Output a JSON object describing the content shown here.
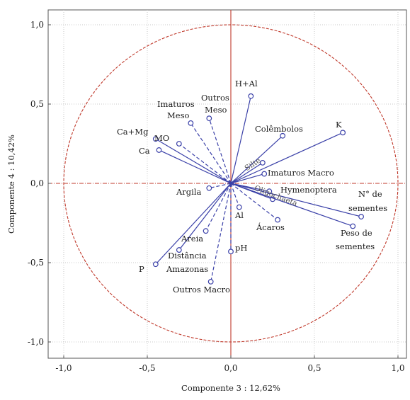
{
  "chart_data": {
    "type": "scatter",
    "subtype": "pca-correlation-circle",
    "xlabel": "Componente 3 : 12,62%",
    "ylabel": "Componente 4 : 10,42%",
    "xlim": [
      -1.05,
      1.05
    ],
    "ylim": [
      -1.1,
      1.1
    ],
    "x_ticks": [
      "-1,0",
      "-0,5",
      "0,0",
      "0,5",
      "1,0"
    ],
    "y_ticks": [
      "1,0",
      "0,5",
      "0,0",
      "-0,5",
      "-1,0"
    ],
    "grid": true,
    "unit_circle": true,
    "colors": {
      "vector": "#3a40a8",
      "circle": "#c0392b",
      "axis": "#c0392b",
      "grid": "#c8c8c8"
    },
    "variables": [
      {
        "label": "H+Al",
        "x": 0.12,
        "y": 0.55,
        "style": "solid"
      },
      {
        "label": "K",
        "x": 0.67,
        "y": 0.32,
        "style": "solid"
      },
      {
        "label": "Colêmbolos",
        "x": 0.31,
        "y": 0.3,
        "style": "solid"
      },
      {
        "label": "Silte",
        "x": 0.19,
        "y": 0.13,
        "style": "solid"
      },
      {
        "label": "Imaturos Macro",
        "x": 0.2,
        "y": 0.06,
        "style": "solid"
      },
      {
        "label": "Hymenoptera",
        "x": 0.23,
        "y": -0.05,
        "style": "solid"
      },
      {
        "label": "Oligochaeta",
        "x": 0.25,
        "y": -0.1,
        "style": "solid"
      },
      {
        "label": "N° de sementes",
        "x": 0.78,
        "y": -0.21,
        "style": "solid"
      },
      {
        "label": "Peso de sementes",
        "x": 0.73,
        "y": -0.27,
        "style": "solid"
      },
      {
        "label": "Ácaros",
        "x": 0.28,
        "y": -0.23,
        "style": "dashed"
      },
      {
        "label": "Al",
        "x": 0.05,
        "y": -0.15,
        "style": "dashed"
      },
      {
        "label": "pH",
        "x": 0.0,
        "y": -0.43,
        "style": "dashed"
      },
      {
        "label": "Outros Macro",
        "x": -0.12,
        "y": -0.62,
        "style": "dashed"
      },
      {
        "label": "Areia",
        "x": -0.15,
        "y": -0.3,
        "style": "dashed"
      },
      {
        "label": "Distância Amazonas",
        "x": -0.31,
        "y": -0.42,
        "style": "solid"
      },
      {
        "label": "P",
        "x": -0.45,
        "y": -0.51,
        "style": "solid"
      },
      {
        "label": "Argila",
        "x": -0.13,
        "y": -0.03,
        "style": "dashed"
      },
      {
        "label": "Ca",
        "x": -0.43,
        "y": 0.21,
        "style": "solid"
      },
      {
        "label": "Ca+Mg",
        "x": -0.45,
        "y": 0.28,
        "style": "solid"
      },
      {
        "label": "MO",
        "x": -0.31,
        "y": 0.25,
        "style": "dashed"
      },
      {
        "label": "Imaturos Meso",
        "x": -0.24,
        "y": 0.38,
        "style": "dashed"
      },
      {
        "label": "Outros Meso",
        "x": -0.13,
        "y": 0.41,
        "style": "dashed"
      }
    ]
  }
}
